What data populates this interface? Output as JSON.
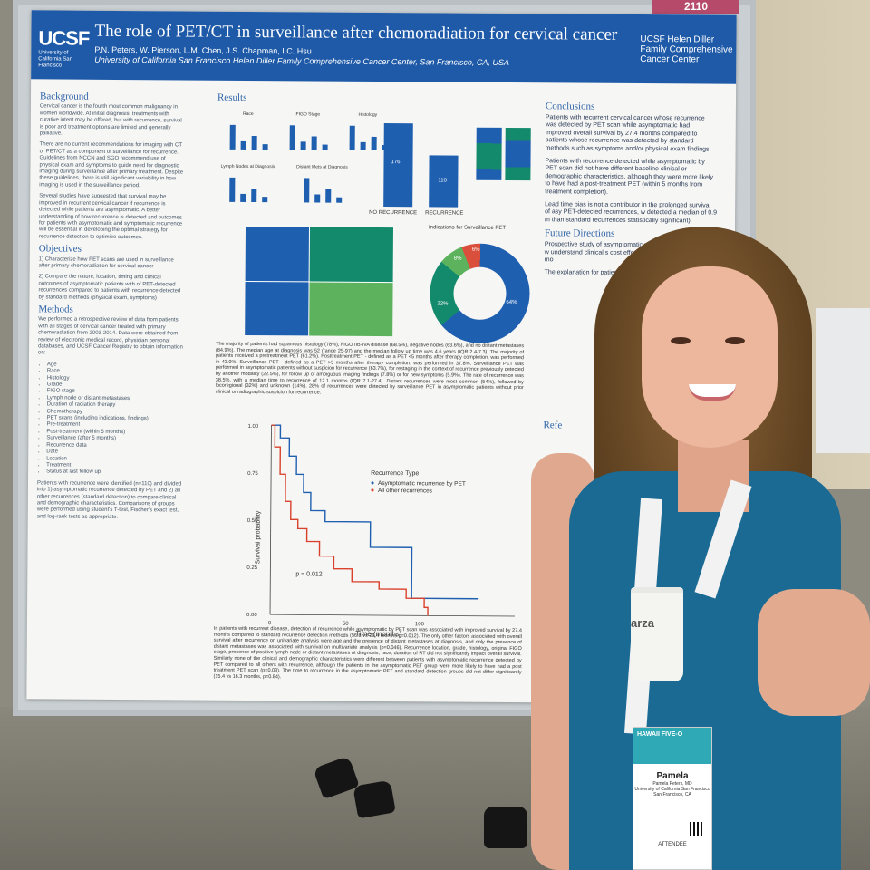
{
  "poster": {
    "tag": "2110",
    "logo": "UCSF",
    "logo_sub": "University of California San Francisco",
    "title": "The role of PET/CT in surveillance after chemoradiation for cervical cancer",
    "authors": "P.N. Peters, W. Pierson, L.M. Chen, J.S. Chapman, I.C. Hsu",
    "affiliation": "University of California San Francisco Helen Diller Family Comprehensive Cancer Center, San Francisco, CA, USA",
    "center": "UCSF Helen Diller Family Comprehensive Cancer Center",
    "background_title": "Background",
    "background_1": "Cervical cancer is the fourth most common malignancy in women worldwide. At initial diagnosis, treatments with curative intent may be offered, but with recurrence, survival is poor and treatment options are limited and generally palliative.",
    "background_2": "There are no current recommendations for imaging with CT or PET/CT as a component of surveillance for recurrence. Guidelines from NCCN and SGO recommend use of physical exam and symptoms to guide need for diagnostic imaging during surveillance after primary treatment. Despite these guidelines, there is still significant variability in how imaging is used in the surveillance period.",
    "background_3": "Several studies have suggested that survival may be improved in recurrent cervical cancer if recurrence is detected while patients are asymptomatic. A better understanding of how recurrence is detected and outcomes for patients with asymptomatic and symptomatic recurrence will be essential in developing the optimal strategy for recurrence detection to optimize outcomes.",
    "objectives_title": "Objectives",
    "objective_1": "1) Characterize how PET scans are used in surveillance after primary chemoradiation for cervical cancer",
    "objective_2": "2) Compare the nature, location, timing and clinical outcomes of asymptomatic patients with of PET-detected recurrences compared to patients with recurrence detected by standard methods (physical exam, symptoms)",
    "methods_title": "Methods",
    "methods_text": "We performed a retrospective review of data from patients with all stages of cervical cancer treated with primary chemoradiation from 2003-2014. Data were obtained from review of electronic medical record, physician personal databases, and UCSF Cancer Registry to obtain information on:",
    "methods_list": [
      "Age",
      "Race",
      "Histology",
      "Grade",
      "FIGO stage",
      "Lymph node or distant metastases",
      "Duration of radiation therapy",
      "Chemotherapy",
      "PET scans (including indications, findings)",
      "Pre-treatment",
      "Post-treatment (within 5 months)",
      "Surveillance (after 5 months)",
      "Recurrence data",
      "Date",
      "Location",
      "Treatment",
      "Status at last follow up"
    ],
    "methods_tail": "Patients with recurrence were identified (n=110) and divided into 1) asymptomatic recurrence detected by PET and 2) all other recurrences (standard detection) to compare clinical and demographic characteristics. Comparisons of groups were performed using student's T-test, Fischer's exact test, and log-rank tests as appropriate.",
    "results_title": "Results",
    "mini_charts": [
      "Race",
      "FIGO Stage",
      "Histology",
      "Lymph Nodes at Diagnosis",
      "Distant Mets at Diagnosis"
    ],
    "bar_no_recurrence": "176",
    "bar_recurrence": "110",
    "bar_label_no": "NO RECURRENCE",
    "bar_label_rec": "RECURRENCE",
    "donut_title": "Indications for Surveillance PET",
    "donut_labels": [
      "64%",
      "22%",
      "8%",
      "6%"
    ],
    "results_text": "The majority of patients had squamous histology (78%), FIGO IIB-IVA disease (68.5%), negative nodes (63.6%), and no distant metastases (84.9%). The median age at diagnosis was 52 (range 25-97) and the median follow up time was 4.6 years (IQR 2.4-7.3). The majority of patients received a pretreatment PET (61.2%). Posttreatment PET - defined as a PET <5 months after therapy completion, was performed in 43.0%. Surveillance PET - defined as a PET >5 months after therapy completion, was performed in 37.8%. Surveillance PET was performed in asymptomatic patients without suspicion for recurrence (63.7%), for restaging in the context of recurrence previously detected by another modality (22.5%), for follow up of ambiguous imaging findings (7.8%) or for new symptoms (5.9%). The rate of recurrence was 38.5%, with a median time to recurrence of 12.1 months (IQR 7.1-27.4). Distant recurrences were most common (54%), followed by locoregional (32%) and unknown (14%). 28% of recurrences were detected by surveillance PET in asymptomatic patients without prior clinical or radiographic suspicion for recurrence.",
    "km_legend_title": "Recurrence Type",
    "km_legend_1": "Asymptomatic recurrence by PET",
    "km_legend_2": "All other recurrences",
    "km_ylabel": "Survival probability",
    "km_xlabel": "Time (months)",
    "km_p": "p = 0.012",
    "km_yticks": [
      "1.00",
      "0.75",
      "0.50",
      "0.25",
      "0.00"
    ],
    "km_xticks": [
      "0",
      "50",
      "100"
    ],
    "results_text_2": "In patients with recurrent disease, detection of recurrence while asymptomatic by PET scan was associated with improved survival by 27.4 months compared to standard recurrence detection methods (56.8 vs 29.4 months p=0.012). The only other factors associated with overall survival after recurrence on univariate analysis were age and the presence of distant metastases at diagnosis, and only the presence of distant metastases was associated with survival on multivariate analysis (p=0.046). Recurrence location, grade, histology, original FIGO stage, presence of positive lymph node or distant metastases at diagnosis, race, duration of RT did not significantly impact overall survival. Similarly none of the clinical and demographic characteristics were different between patients with asymptomatic recurrence detected by PET compared to all others with recurrence, although the patients in the asymptomatic PET group were more likely to have had a post treatment PET scan (p=0.03). The time to recurrence in the asymptomatic PET and standard detection groups did not differ significantly (15.4 vs 16.3 months, p=0.84).",
    "conclusions_title": "Conclusions",
    "conclusion_1": "Patients with recurrent cervical cancer whose recurrence was detected by PET scan while asymptomatic had improved overall survival by 27.4 months compared to patients whose recurrence was detected by standard methods such as symptoms and/or physical exam findings.",
    "conclusion_2": "Patients with recurrence detected while asymptomatic by PET scan did not have different baseline clinical or demographic characteristics, although they were more likely to have had a post-treatment PET (within 5 months from treatment completion).",
    "conclusion_3": "Lead time bias is not a contributor in the prolonged survival of asy PET-detected recurrences, w detected a median of 0.9 m than standard recurrences statistically significant).",
    "future_title": "Future Directions",
    "future_1": "Prospective study of asymptomatic patien surveillance period w understand clinical s cost effectiveness, a with potential for mo",
    "future_2": "The explanation for patients with asympt unclear. Possibilitie",
    "references_title": "Refe"
  },
  "badge": {
    "event": "HAWAII FIVE-O",
    "name": "Pamela",
    "full_name": "Pamela Peters, MD",
    "org": "University of California San Francisco",
    "city": "San Francisco, CA",
    "role": "ATTENDEE"
  },
  "cup_text": "arza"
}
